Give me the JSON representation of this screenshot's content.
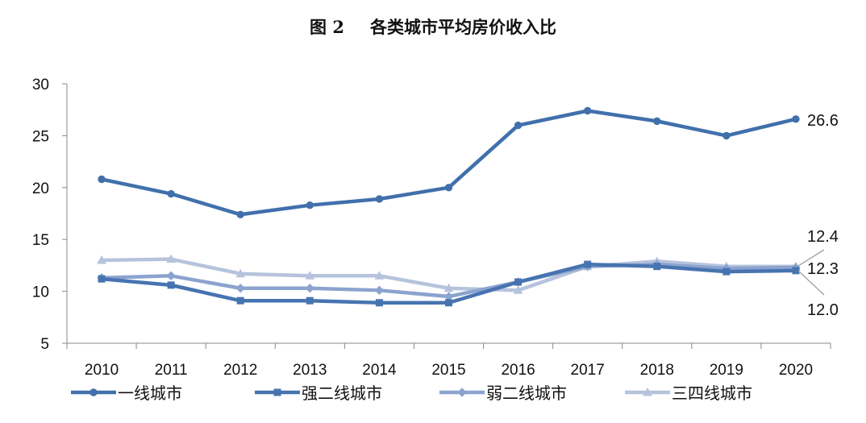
{
  "title_number": "图 2",
  "title_text": "各类城市平均房价收入比",
  "colors": {
    "series1": "#4170AB",
    "series2": "#4774B0",
    "series3": "#8BA3CF",
    "series4": "#B6C3DD"
  },
  "chart_data": {
    "type": "line",
    "title": "图 2 各类城市平均房价收入比",
    "xlabel": "",
    "ylabel": "",
    "categories": [
      "2010",
      "2011",
      "2012",
      "2013",
      "2014",
      "2015",
      "2016",
      "2017",
      "2018",
      "2019",
      "2020"
    ],
    "ylim": [
      5,
      30
    ],
    "yticks": [
      "30",
      "25",
      "20",
      "15",
      "10",
      "5"
    ],
    "grid": false,
    "legend_position": "bottom",
    "series": [
      {
        "name": "一线城市",
        "marker": "circle",
        "color": "#4170AB",
        "values": [
          20.8,
          19.4,
          17.4,
          18.3,
          18.9,
          20.0,
          26.0,
          27.4,
          26.4,
          25.0,
          26.6
        ]
      },
      {
        "name": "强二线城市",
        "marker": "square",
        "color": "#4774B0",
        "values": [
          11.2,
          10.6,
          9.1,
          9.1,
          8.9,
          8.9,
          10.9,
          12.6,
          12.4,
          11.9,
          12.0
        ]
      },
      {
        "name": "弱二线城市",
        "marker": "diamond",
        "color": "#8BA3CF",
        "values": [
          11.3,
          11.5,
          10.3,
          10.3,
          10.1,
          9.5,
          10.9,
          12.4,
          12.6,
          12.2,
          12.3
        ]
      },
      {
        "name": "三四线城市",
        "marker": "triangle",
        "color": "#B6C3DD",
        "values": [
          13.0,
          13.1,
          11.7,
          11.5,
          11.5,
          10.3,
          10.1,
          12.4,
          12.9,
          12.4,
          12.4
        ]
      }
    ],
    "annotations": [
      "26.6",
      "12.4",
      "12.3",
      "12.0"
    ]
  }
}
